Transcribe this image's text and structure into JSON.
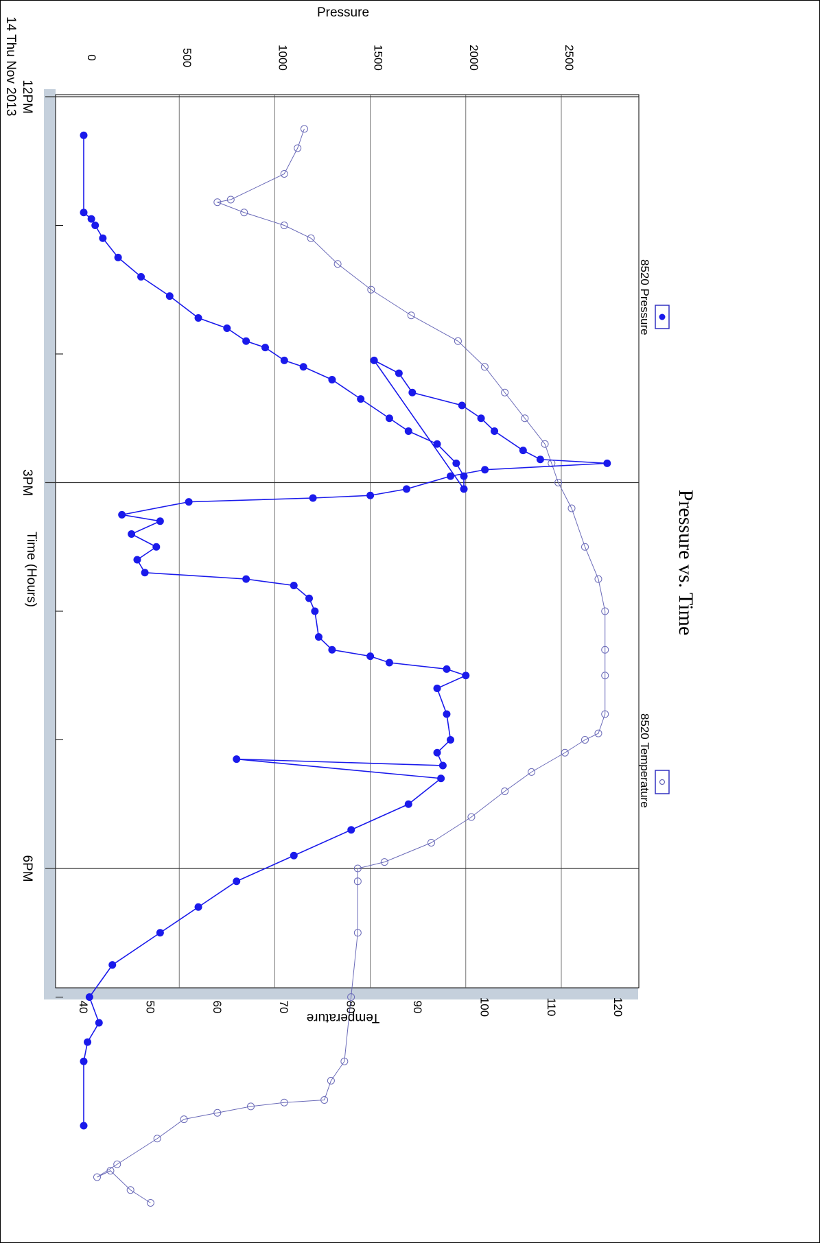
{
  "chart_data": {
    "type": "line",
    "orientation": "rotated-90-clockwise",
    "title": "Pressure vs. Time",
    "xlabel": "Time (Hours)",
    "date_label": "14 Thu Nov 2013",
    "ylabel_left": "Pressure",
    "ylabel_right": "Temperature",
    "x_ticks": [
      "12PM",
      "3PM",
      "6PM"
    ],
    "x_range_hours": [
      12.0,
      20.4
    ],
    "pressure_ticks": [
      "0",
      "500",
      "1000",
      "1500",
      "2000",
      "2500"
    ],
    "pressure_range": [
      -200,
      2800
    ],
    "temperature_ticks": [
      "40",
      "50",
      "60",
      "70",
      "80",
      "90",
      "100",
      "110",
      "120"
    ],
    "temperature_range": [
      40,
      120
    ],
    "grid": true,
    "legend_position": "right",
    "colors": {
      "pressure": "#1a1aeb",
      "temperature": "#6a6ab8",
      "axis_band": "#c5d0dc"
    },
    "series": [
      {
        "name": "8520 Pressure",
        "axis": "left",
        "marker": "filled-circle",
        "points": [
          [
            12.3,
            0
          ],
          [
            12.9,
            0
          ],
          [
            12.95,
            40
          ],
          [
            13.0,
            60
          ],
          [
            13.1,
            100
          ],
          [
            13.25,
            180
          ],
          [
            13.4,
            300
          ],
          [
            13.55,
            450
          ],
          [
            13.72,
            600
          ],
          [
            13.8,
            750
          ],
          [
            13.9,
            850
          ],
          [
            13.95,
            950
          ],
          [
            14.05,
            1050
          ],
          [
            14.1,
            1150
          ],
          [
            14.2,
            1300
          ],
          [
            14.35,
            1450
          ],
          [
            14.5,
            1600
          ],
          [
            14.6,
            1700
          ],
          [
            14.7,
            1850
          ],
          [
            14.85,
            1950
          ],
          [
            14.95,
            1990
          ],
          [
            15.05,
            1990
          ],
          [
            14.05,
            1520
          ],
          [
            14.15,
            1650
          ],
          [
            14.3,
            1720
          ],
          [
            14.4,
            1980
          ],
          [
            14.5,
            2080
          ],
          [
            14.6,
            2150
          ],
          [
            14.75,
            2300
          ],
          [
            14.82,
            2390
          ],
          [
            14.85,
            2740
          ],
          [
            14.9,
            2100
          ],
          [
            14.95,
            1920
          ],
          [
            15.05,
            1690
          ],
          [
            15.1,
            1500
          ],
          [
            15.12,
            1200
          ],
          [
            15.15,
            550
          ],
          [
            15.25,
            200
          ],
          [
            15.3,
            400
          ],
          [
            15.4,
            250
          ],
          [
            15.5,
            380
          ],
          [
            15.6,
            280
          ],
          [
            15.7,
            320
          ],
          [
            15.75,
            850
          ],
          [
            15.8,
            1100
          ],
          [
            15.9,
            1180
          ],
          [
            16.0,
            1210
          ],
          [
            16.2,
            1230
          ],
          [
            16.3,
            1300
          ],
          [
            16.35,
            1500
          ],
          [
            16.4,
            1600
          ],
          [
            16.45,
            1900
          ],
          [
            16.5,
            2000
          ],
          [
            16.6,
            1850
          ],
          [
            16.8,
            1900
          ],
          [
            17.0,
            1920
          ],
          [
            17.1,
            1850
          ],
          [
            17.2,
            1880
          ],
          [
            17.15,
            800
          ],
          [
            17.3,
            1870
          ],
          [
            17.5,
            1700
          ],
          [
            17.7,
            1400
          ],
          [
            17.9,
            1100
          ],
          [
            18.1,
            800
          ],
          [
            18.3,
            600
          ],
          [
            18.5,
            400
          ],
          [
            18.75,
            150
          ],
          [
            19.0,
            30
          ],
          [
            19.2,
            80
          ],
          [
            19.35,
            20
          ],
          [
            19.5,
            0
          ],
          [
            20.0,
            0
          ]
        ]
      },
      {
        "name": "8520 Temperature",
        "axis": "right",
        "marker": "open-circle",
        "points": [
          [
            12.25,
            73
          ],
          [
            12.4,
            72
          ],
          [
            12.6,
            70
          ],
          [
            12.8,
            62
          ],
          [
            12.82,
            60
          ],
          [
            12.9,
            64
          ],
          [
            13.0,
            70
          ],
          [
            13.1,
            74
          ],
          [
            13.3,
            78
          ],
          [
            13.5,
            83
          ],
          [
            13.7,
            89
          ],
          [
            13.9,
            96
          ],
          [
            14.1,
            100
          ],
          [
            14.3,
            103
          ],
          [
            14.5,
            106
          ],
          [
            14.7,
            109
          ],
          [
            14.85,
            110
          ],
          [
            15.0,
            111
          ],
          [
            15.2,
            113
          ],
          [
            15.5,
            115
          ],
          [
            15.75,
            117
          ],
          [
            16.0,
            118
          ],
          [
            16.3,
            118
          ],
          [
            16.5,
            118
          ],
          [
            16.8,
            118
          ],
          [
            16.95,
            117
          ],
          [
            17.0,
            115
          ],
          [
            17.1,
            112
          ],
          [
            17.25,
            107
          ],
          [
            17.4,
            103
          ],
          [
            17.6,
            98
          ],
          [
            17.8,
            92
          ],
          [
            17.95,
            85
          ],
          [
            18.0,
            81
          ],
          [
            18.1,
            81
          ],
          [
            18.5,
            81
          ],
          [
            19.0,
            80
          ],
          [
            19.5,
            79
          ],
          [
            19.65,
            77
          ],
          [
            19.8,
            76
          ],
          [
            19.82,
            70
          ],
          [
            19.85,
            65
          ],
          [
            19.9,
            60
          ],
          [
            19.95,
            55
          ],
          [
            20.1,
            51
          ],
          [
            20.3,
            45
          ],
          [
            20.4,
            42
          ],
          [
            20.35,
            44
          ],
          [
            20.5,
            47
          ],
          [
            20.6,
            50
          ]
        ]
      }
    ]
  }
}
